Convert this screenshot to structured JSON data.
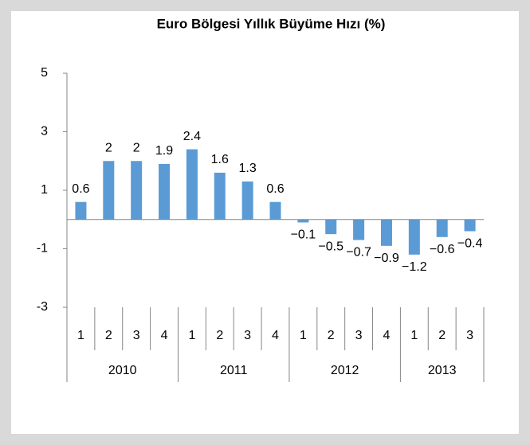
{
  "chart_data": {
    "type": "bar",
    "title": "Euro Bölgesi Yıllık Büyüme Hızı (%)",
    "category_groups": [
      {
        "name": "2010",
        "categories": [
          "1",
          "2",
          "3",
          "4"
        ]
      },
      {
        "name": "2011",
        "categories": [
          "1",
          "2",
          "3",
          "4"
        ]
      },
      {
        "name": "2012",
        "categories": [
          "1",
          "2",
          "3",
          "4"
        ]
      },
      {
        "name": "2013",
        "categories": [
          "1",
          "2",
          "3"
        ]
      }
    ],
    "values": [
      0.6,
      2,
      2,
      1.9,
      2.4,
      1.6,
      1.3,
      0.6,
      -0.1,
      -0.5,
      -0.7,
      -0.9,
      -1.2,
      -0.6,
      -0.4
    ],
    "value_labels": [
      "0.6",
      "2",
      "2",
      "1.9",
      "2.4",
      "1.6",
      "1.3",
      "0.6",
      "−0.1",
      "−0.5",
      "−0.7",
      "−0.9",
      "−1.2",
      "−0.6",
      "−0.4"
    ],
    "color": "#5b9bd5",
    "ylim": [
      -3,
      5
    ],
    "yticks": [
      5,
      3,
      1,
      -1,
      -3
    ],
    "grid": false
  }
}
